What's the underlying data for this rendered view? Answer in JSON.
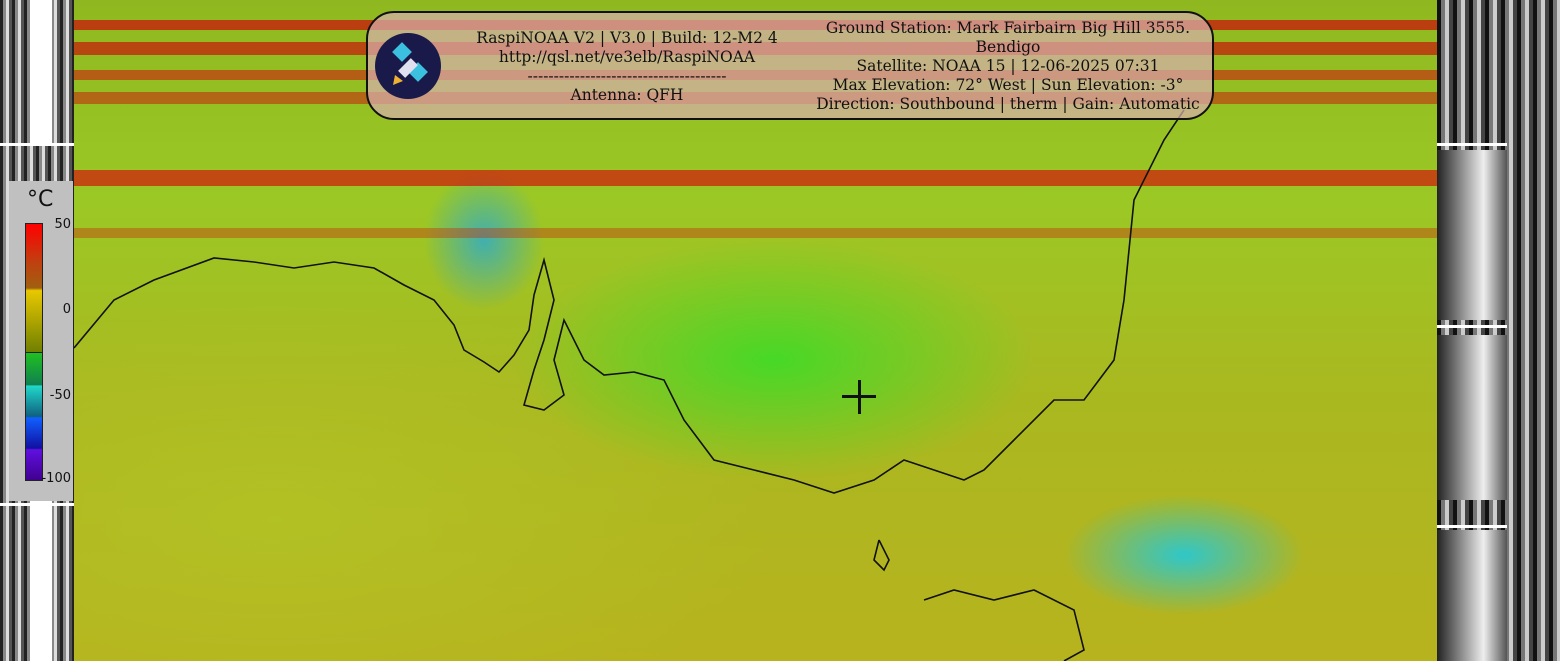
{
  "overlay": {
    "title_line": "RaspiNOAA V2 | V3.0 | Build: 12-M2 4",
    "url": "http://qsl.net/ve3elb/RaspiNOAA",
    "divider": "--------------------------------------",
    "antenna": "Antenna: QFH",
    "ground_station": "Ground Station: Mark Fairbairn Big Hill 3555.",
    "location": "Bendigo",
    "satellite": "Satellite: NOAA 15 | 12-06-2025 07:31",
    "elevation": "Max Elevation: 72° West | Sun Elevation: -3°",
    "direction": "Direction: Southbound | therm | Gain: Automatic",
    "logo_icon": "satellite-icon"
  },
  "legend": {
    "unit": "°C",
    "ticks": [
      "50",
      "0",
      "-50",
      "-100"
    ],
    "colors": [
      "#ff0000",
      "#e8c800",
      "#20c020",
      "#20d8c8",
      "#1060ff",
      "#400090"
    ]
  },
  "map": {
    "enhancement": "therm",
    "marker_icon": "crosshair-icon"
  }
}
